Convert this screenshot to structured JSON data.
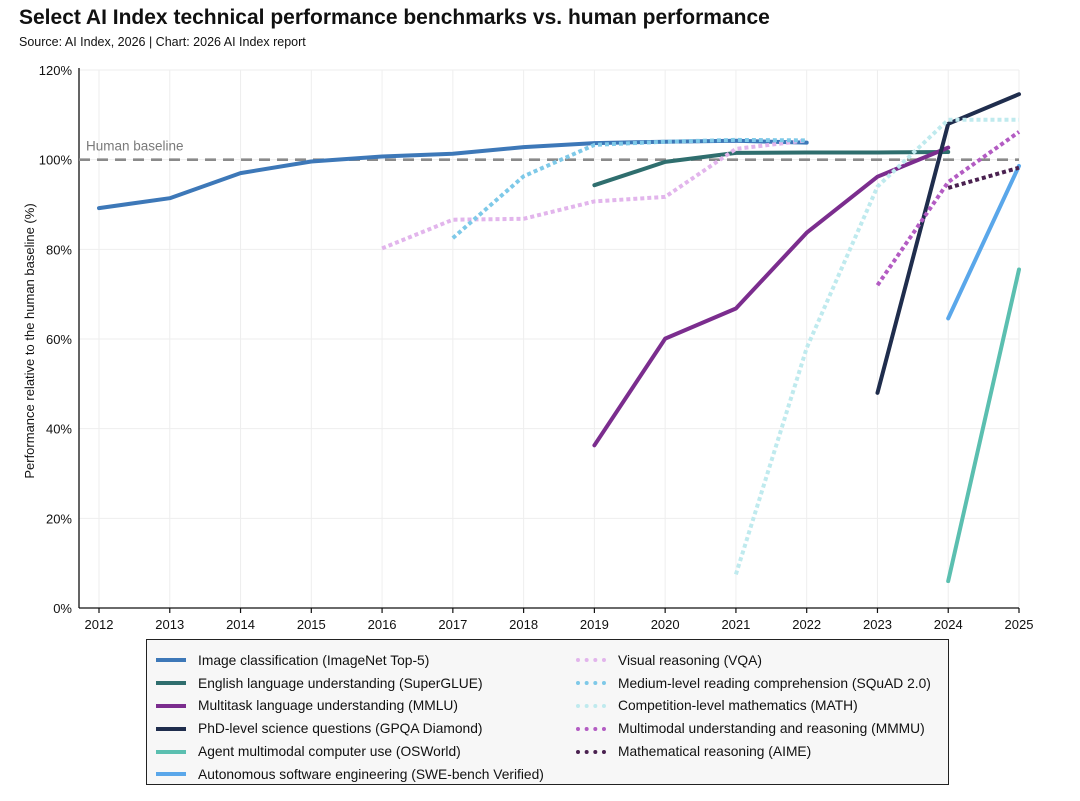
{
  "title": "Select AI Index technical performance benchmarks vs. human performance",
  "subtitle": "Source: AI Index, 2026 | Chart: 2026 AI Index report",
  "chart_data": {
    "type": "line",
    "ylabel": "Performance relative to the human baseline (%)",
    "xlabel": "",
    "x_ticks": [
      "2012",
      "2013",
      "2014",
      "2015",
      "2016",
      "2017",
      "2018",
      "2019",
      "2020",
      "2021",
      "2022",
      "2023",
      "2024",
      "2025"
    ],
    "xlim": [
      2012,
      2025
    ],
    "ylim": [
      0,
      120
    ],
    "y_ticks": [
      0,
      20,
      40,
      60,
      80,
      100,
      120
    ],
    "y_tick_suffix": "%",
    "grid": true,
    "baseline": {
      "value": 100,
      "label": "Human baseline",
      "color": "#8a8a8a"
    },
    "legend_position": "bottom",
    "series": [
      {
        "name": "Image classification (ImageNet Top-5)",
        "color": "#3d78b8",
        "style": "solid",
        "x": [
          2012,
          2013,
          2014,
          2015,
          2016,
          2017,
          2018,
          2019,
          2020,
          2021,
          2022
        ],
        "y": [
          89.2,
          91.4,
          97.0,
          99.6,
          100.7,
          101.3,
          102.8,
          103.7,
          104.0,
          104.2,
          103.8
        ]
      },
      {
        "name": "English language understanding (SuperGLUE)",
        "color": "#2f6e6e",
        "style": "solid",
        "x": [
          2019,
          2020,
          2021,
          2022,
          2023,
          2024
        ],
        "y": [
          94.3,
          99.5,
          101.5,
          101.6,
          101.6,
          101.7
        ]
      },
      {
        "name": "Multitask language understanding (MMLU)",
        "color": "#7b2d8e",
        "style": "solid",
        "x": [
          2019,
          2020,
          2021,
          2022,
          2023,
          2024
        ],
        "y": [
          36.3,
          60.1,
          66.8,
          83.7,
          96.2,
          102.7
        ]
      },
      {
        "name": "PhD-level science questions (GPQA Diamond)",
        "color": "#1f2d4d",
        "style": "solid",
        "x": [
          2023,
          2024,
          2025
        ],
        "y": [
          48.0,
          108.0,
          114.6
        ]
      },
      {
        "name": "Agent multimodal computer use (OSWorld)",
        "color": "#5bbfb0",
        "style": "solid",
        "x": [
          2024,
          2025
        ],
        "y": [
          6.0,
          75.5
        ]
      },
      {
        "name": "Autonomous software engineering (SWE-bench Verified)",
        "color": "#5aa7ea",
        "style": "solid",
        "x": [
          2024,
          2025
        ],
        "y": [
          64.6,
          98.6
        ]
      },
      {
        "name": "Visual reasoning (VQA)",
        "color": "#e2b5ec",
        "style": "dotted",
        "x": [
          2016,
          2017,
          2018,
          2019,
          2020,
          2021,
          2022
        ],
        "y": [
          80.2,
          86.6,
          86.8,
          90.7,
          91.7,
          102.4,
          104.3
        ]
      },
      {
        "name": "Medium-level reading comprehension (SQuAD 2.0)",
        "color": "#7ec9e8",
        "style": "dotted",
        "x": [
          2017,
          2018,
          2019,
          2020,
          2021,
          2022
        ],
        "y": [
          82.5,
          96.3,
          103.3,
          104.0,
          104.4,
          104.3
        ]
      },
      {
        "name": "Competition-level mathematics (MATH)",
        "color": "#bfeaee",
        "style": "dotted",
        "x": [
          2021,
          2022,
          2023,
          2024,
          2025
        ],
        "y": [
          7.5,
          58.0,
          94.0,
          108.9,
          108.9
        ]
      },
      {
        "name": "Multimodal understanding and reasoning (MMMU)",
        "color": "#b35cc3",
        "style": "dotted",
        "x": [
          2023,
          2024,
          2025
        ],
        "y": [
          72.0,
          95.0,
          106.2
        ]
      },
      {
        "name": "Mathematical reasoning (AIME)",
        "color": "#4a2150",
        "style": "dotted",
        "x": [
          2024,
          2025
        ],
        "y": [
          93.7,
          98.2
        ]
      }
    ]
  }
}
